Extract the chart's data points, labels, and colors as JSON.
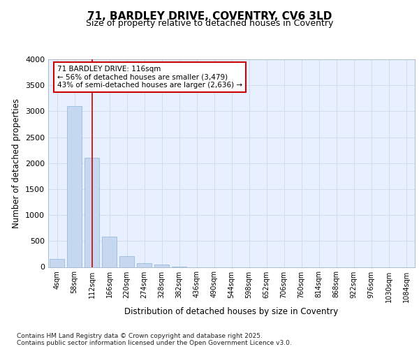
{
  "title1": "71, BARDLEY DRIVE, COVENTRY, CV6 3LD",
  "title2": "Size of property relative to detached houses in Coventry",
  "xlabel": "Distribution of detached houses by size in Coventry",
  "ylabel": "Number of detached properties",
  "annotation_title": "71 BARDLEY DRIVE: 116sqm",
  "annotation_line1": "← 56% of detached houses are smaller (3,479)",
  "annotation_line2": "43% of semi-detached houses are larger (2,636) →",
  "footer1": "Contains HM Land Registry data © Crown copyright and database right 2025.",
  "footer2": "Contains public sector information licensed under the Open Government Licence v3.0.",
  "bar_color": "#c5d8f0",
  "bar_edge_color": "#8ab4d8",
  "grid_color": "#d0ddf0",
  "chart_bg": "#e8f0ff",
  "fig_bg": "#ffffff",
  "vline_color": "#cc0000",
  "categories": [
    "4sqm",
    "58sqm",
    "112sqm",
    "166sqm",
    "220sqm",
    "274sqm",
    "328sqm",
    "382sqm",
    "436sqm",
    "490sqm",
    "544sqm",
    "598sqm",
    "652sqm",
    "706sqm",
    "760sqm",
    "814sqm",
    "868sqm",
    "922sqm",
    "976sqm",
    "1030sqm",
    "1084sqm"
  ],
  "values": [
    150,
    3100,
    2100,
    580,
    210,
    70,
    50,
    5,
    0,
    0,
    0,
    0,
    0,
    0,
    0,
    0,
    0,
    0,
    0,
    0,
    0
  ],
  "vline_x": 2,
  "ylim": [
    0,
    4000
  ],
  "yticks": [
    0,
    500,
    1000,
    1500,
    2000,
    2500,
    3000,
    3500,
    4000
  ]
}
